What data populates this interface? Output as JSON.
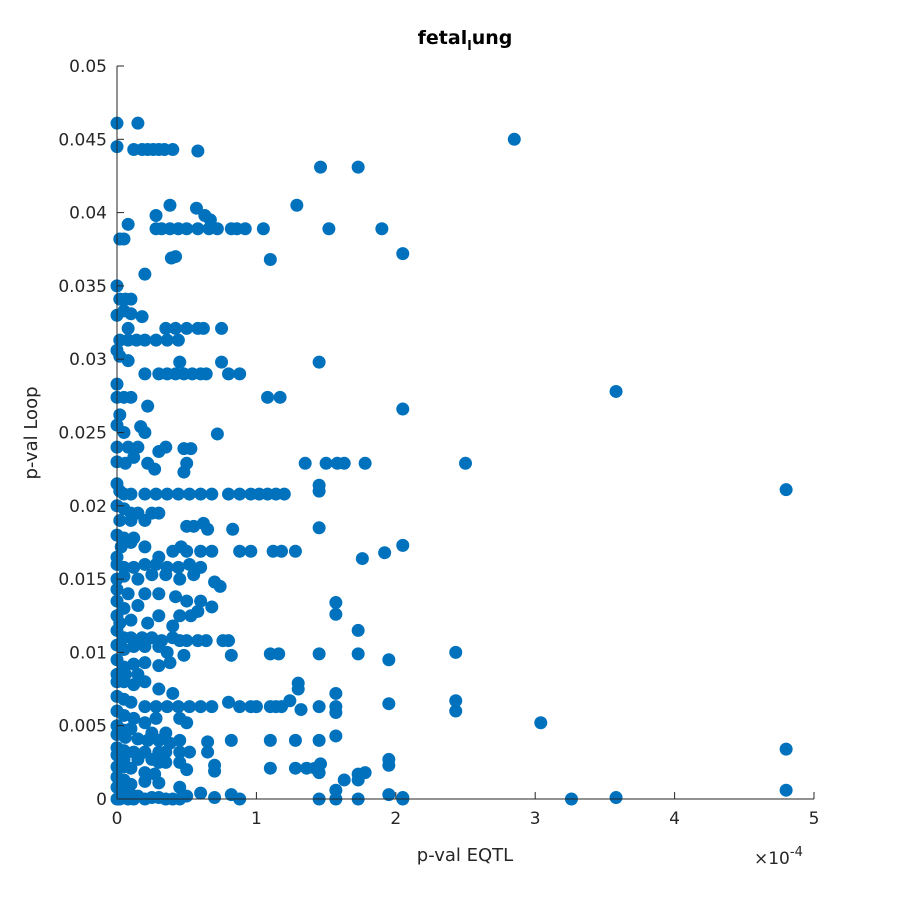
{
  "chart_data": {
    "type": "scatter",
    "title_parts": [
      "fetal",
      "l",
      "ung"
    ],
    "xlabel": "p-val EQTL",
    "ylabel": "p-val Loop",
    "x_multiplier_base": "×10",
    "x_multiplier_exp": "-4",
    "xlim": [
      0,
      5
    ],
    "ylim": [
      0,
      0.05
    ],
    "x_ticks": [
      0,
      1,
      2,
      3,
      4,
      5
    ],
    "x_tick_labels": [
      "0",
      "1",
      "2",
      "3",
      "4",
      "5"
    ],
    "y_ticks": [
      0,
      0.005,
      0.01,
      0.015,
      0.02,
      0.025,
      0.03,
      0.035,
      0.04,
      0.045,
      0.05
    ],
    "y_tick_labels": [
      "0",
      "0.005",
      "0.01",
      "0.015",
      "0.02",
      "0.025",
      "0.03",
      "0.035",
      "0.04",
      "0.045",
      "0.05"
    ],
    "grid": false,
    "marker_color": "#0072BD",
    "x_units_note": "x values in units of 1e-4",
    "points": [
      [
        0.0,
        0.0461
      ],
      [
        0.15,
        0.0461
      ],
      [
        0.0,
        0.0445
      ],
      [
        0.12,
        0.0443
      ],
      [
        0.18,
        0.0443
      ],
      [
        0.22,
        0.0443
      ],
      [
        0.26,
        0.0443
      ],
      [
        0.3,
        0.0443
      ],
      [
        0.34,
        0.0443
      ],
      [
        0.4,
        0.0443
      ],
      [
        0.58,
        0.0442
      ],
      [
        2.85,
        0.045
      ],
      [
        1.46,
        0.0431
      ],
      [
        1.73,
        0.0431
      ],
      [
        1.29,
        0.0405
      ],
      [
        0.38,
        0.0405
      ],
      [
        0.57,
        0.0403
      ],
      [
        0.28,
        0.0398
      ],
      [
        0.63,
        0.0398
      ],
      [
        0.67,
        0.0395
      ],
      [
        0.08,
        0.0392
      ],
      [
        0.28,
        0.0389
      ],
      [
        0.32,
        0.0389
      ],
      [
        0.38,
        0.0389
      ],
      [
        0.44,
        0.0389
      ],
      [
        0.5,
        0.0389
      ],
      [
        0.58,
        0.0389
      ],
      [
        0.66,
        0.0389
      ],
      [
        0.72,
        0.0389
      ],
      [
        0.82,
        0.0389
      ],
      [
        0.86,
        0.0389
      ],
      [
        0.92,
        0.0389
      ],
      [
        1.05,
        0.0389
      ],
      [
        1.52,
        0.0389
      ],
      [
        1.9,
        0.0389
      ],
      [
        0.02,
        0.0382
      ],
      [
        0.05,
        0.0382
      ],
      [
        2.05,
        0.0372
      ],
      [
        0.39,
        0.0369
      ],
      [
        0.42,
        0.037
      ],
      [
        1.1,
        0.0368
      ],
      [
        0.2,
        0.0358
      ],
      [
        0.0,
        0.035
      ],
      [
        0.02,
        0.0341
      ],
      [
        0.06,
        0.0341
      ],
      [
        0.1,
        0.0341
      ],
      [
        0.0,
        0.033
      ],
      [
        0.05,
        0.0333
      ],
      [
        0.1,
        0.0331
      ],
      [
        0.18,
        0.0329
      ],
      [
        0.08,
        0.0321
      ],
      [
        0.35,
        0.0321
      ],
      [
        0.42,
        0.0321
      ],
      [
        0.5,
        0.0321
      ],
      [
        0.58,
        0.0321
      ],
      [
        0.62,
        0.0321
      ],
      [
        0.75,
        0.0321
      ],
      [
        0.02,
        0.0313
      ],
      [
        0.08,
        0.0313
      ],
      [
        0.14,
        0.0313
      ],
      [
        0.2,
        0.0313
      ],
      [
        0.28,
        0.0313
      ],
      [
        0.36,
        0.0313
      ],
      [
        0.44,
        0.0313
      ],
      [
        0.0,
        0.0306
      ],
      [
        0.02,
        0.0302
      ],
      [
        0.08,
        0.0299
      ],
      [
        0.45,
        0.0298
      ],
      [
        0.75,
        0.0298
      ],
      [
        1.45,
        0.0298
      ],
      [
        0.2,
        0.029
      ],
      [
        0.3,
        0.029
      ],
      [
        0.36,
        0.029
      ],
      [
        0.42,
        0.029
      ],
      [
        0.48,
        0.029
      ],
      [
        0.54,
        0.029
      ],
      [
        0.6,
        0.029
      ],
      [
        0.64,
        0.029
      ],
      [
        0.8,
        0.029
      ],
      [
        0.88,
        0.029
      ],
      [
        0.0,
        0.0283
      ],
      [
        3.58,
        0.0278
      ],
      [
        1.08,
        0.0274
      ],
      [
        1.17,
        0.0274
      ],
      [
        0.0,
        0.0274
      ],
      [
        0.05,
        0.0274
      ],
      [
        0.1,
        0.0274
      ],
      [
        0.22,
        0.0268
      ],
      [
        2.05,
        0.0266
      ],
      [
        0.02,
        0.0262
      ],
      [
        0.0,
        0.0255
      ],
      [
        0.05,
        0.025
      ],
      [
        0.17,
        0.0254
      ],
      [
        0.2,
        0.025
      ],
      [
        0.72,
        0.0249
      ],
      [
        0.0,
        0.024
      ],
      [
        0.08,
        0.024
      ],
      [
        0.15,
        0.024
      ],
      [
        0.3,
        0.0237
      ],
      [
        0.35,
        0.024
      ],
      [
        0.48,
        0.0239
      ],
      [
        0.53,
        0.0239
      ],
      [
        0.0,
        0.023
      ],
      [
        0.06,
        0.0229
      ],
      [
        0.12,
        0.0233
      ],
      [
        0.22,
        0.0229
      ],
      [
        0.27,
        0.0225
      ],
      [
        0.5,
        0.0229
      ],
      [
        0.48,
        0.0223
      ],
      [
        1.35,
        0.0229
      ],
      [
        1.5,
        0.0229
      ],
      [
        1.58,
        0.0229
      ],
      [
        1.63,
        0.0229
      ],
      [
        1.78,
        0.0229
      ],
      [
        2.5,
        0.0229
      ],
      [
        0.0,
        0.0215
      ],
      [
        0.02,
        0.021
      ],
      [
        0.05,
        0.0208
      ],
      [
        0.1,
        0.0208
      ],
      [
        0.2,
        0.0208
      ],
      [
        0.28,
        0.0208
      ],
      [
        0.36,
        0.0208
      ],
      [
        0.44,
        0.0208
      ],
      [
        0.52,
        0.0208
      ],
      [
        0.6,
        0.0208
      ],
      [
        0.68,
        0.0208
      ],
      [
        0.8,
        0.0208
      ],
      [
        0.88,
        0.0208
      ],
      [
        0.96,
        0.0208
      ],
      [
        1.02,
        0.0208
      ],
      [
        1.08,
        0.0208
      ],
      [
        1.14,
        0.0208
      ],
      [
        1.2,
        0.0208
      ],
      [
        1.45,
        0.0214
      ],
      [
        1.45,
        0.021
      ],
      [
        4.8,
        0.0211
      ],
      [
        0.0,
        0.02
      ],
      [
        0.05,
        0.0198
      ],
      [
        0.1,
        0.0195
      ],
      [
        0.15,
        0.0195
      ],
      [
        0.25,
        0.0195
      ],
      [
        0.3,
        0.0195
      ],
      [
        0.02,
        0.019
      ],
      [
        0.1,
        0.019
      ],
      [
        0.2,
        0.019
      ],
      [
        0.5,
        0.0186
      ],
      [
        0.55,
        0.0186
      ],
      [
        0.62,
        0.0188
      ],
      [
        0.65,
        0.0184
      ],
      [
        0.83,
        0.0184
      ],
      [
        1.45,
        0.0185
      ],
      [
        0.0,
        0.018
      ],
      [
        0.05,
        0.0178
      ],
      [
        0.12,
        0.0178
      ],
      [
        0.03,
        0.0172
      ],
      [
        0.1,
        0.0175
      ],
      [
        0.2,
        0.0172
      ],
      [
        0.3,
        0.0165
      ],
      [
        0.46,
        0.0172
      ],
      [
        0.4,
        0.0169
      ],
      [
        0.5,
        0.0169
      ],
      [
        0.6,
        0.0169
      ],
      [
        0.68,
        0.0169
      ],
      [
        0.88,
        0.0169
      ],
      [
        0.96,
        0.0169
      ],
      [
        1.12,
        0.0169
      ],
      [
        1.18,
        0.0169
      ],
      [
        1.28,
        0.0169
      ],
      [
        2.05,
        0.0173
      ],
      [
        1.92,
        0.0168
      ],
      [
        1.76,
        0.0164
      ],
      [
        0.0,
        0.0165
      ],
      [
        0.0,
        0.016
      ],
      [
        0.05,
        0.0158
      ],
      [
        0.12,
        0.0158
      ],
      [
        0.2,
        0.016
      ],
      [
        0.28,
        0.016
      ],
      [
        0.36,
        0.0158
      ],
      [
        0.44,
        0.0158
      ],
      [
        0.52,
        0.016
      ],
      [
        0.6,
        0.0158
      ],
      [
        0.0,
        0.015
      ],
      [
        0.05,
        0.0152
      ],
      [
        0.15,
        0.015
      ],
      [
        0.25,
        0.0153
      ],
      [
        0.35,
        0.0153
      ],
      [
        0.45,
        0.015
      ],
      [
        0.55,
        0.0153
      ],
      [
        0.7,
        0.0148
      ],
      [
        0.74,
        0.0145
      ],
      [
        0.0,
        0.0143
      ],
      [
        0.08,
        0.014
      ],
      [
        0.2,
        0.014
      ],
      [
        0.3,
        0.014
      ],
      [
        0.42,
        0.0138
      ],
      [
        0.5,
        0.0135
      ],
      [
        0.6,
        0.0135
      ],
      [
        0.68,
        0.0131
      ],
      [
        0.0,
        0.0135
      ],
      [
        0.05,
        0.013
      ],
      [
        0.15,
        0.0132
      ],
      [
        0.3,
        0.0125
      ],
      [
        0.45,
        0.0125
      ],
      [
        0.53,
        0.0125
      ],
      [
        0.58,
        0.0128
      ],
      [
        1.57,
        0.0134
      ],
      [
        1.57,
        0.0126
      ],
      [
        1.73,
        0.0115
      ],
      [
        0.0,
        0.0125
      ],
      [
        0.02,
        0.012
      ],
      [
        0.1,
        0.0122
      ],
      [
        0.22,
        0.012
      ],
      [
        0.4,
        0.0118
      ],
      [
        0.0,
        0.0115
      ],
      [
        0.05,
        0.011
      ],
      [
        0.1,
        0.011
      ],
      [
        0.18,
        0.011
      ],
      [
        0.25,
        0.011
      ],
      [
        0.32,
        0.0108
      ],
      [
        0.4,
        0.011
      ],
      [
        0.45,
        0.0108
      ],
      [
        0.5,
        0.0108
      ],
      [
        0.58,
        0.0108
      ],
      [
        0.64,
        0.0108
      ],
      [
        0.76,
        0.0108
      ],
      [
        0.8,
        0.0108
      ],
      [
        0.0,
        0.0105
      ],
      [
        0.05,
        0.0102
      ],
      [
        0.12,
        0.0104
      ],
      [
        0.2,
        0.0104
      ],
      [
        0.3,
        0.0104
      ],
      [
        0.36,
        0.01
      ],
      [
        0.48,
        0.0098
      ],
      [
        0.82,
        0.0098
      ],
      [
        1.1,
        0.0099
      ],
      [
        1.16,
        0.0099
      ],
      [
        1.45,
        0.0099
      ],
      [
        1.73,
        0.0099
      ],
      [
        1.95,
        0.0095
      ],
      [
        2.43,
        0.01
      ],
      [
        0.0,
        0.0095
      ],
      [
        0.05,
        0.009
      ],
      [
        0.12,
        0.0092
      ],
      [
        0.2,
        0.0093
      ],
      [
        0.3,
        0.0091
      ],
      [
        0.38,
        0.0093
      ],
      [
        0.0,
        0.0085
      ],
      [
        0.06,
        0.0085
      ],
      [
        0.15,
        0.0085
      ],
      [
        0.0,
        0.008
      ],
      [
        0.05,
        0.008
      ],
      [
        0.12,
        0.0078
      ],
      [
        0.2,
        0.008
      ],
      [
        0.3,
        0.0075
      ],
      [
        0.4,
        0.0072
      ],
      [
        1.3,
        0.0079
      ],
      [
        1.3,
        0.0075
      ],
      [
        1.57,
        0.0072
      ],
      [
        0.0,
        0.007
      ],
      [
        0.05,
        0.0068
      ],
      [
        0.1,
        0.0066
      ],
      [
        0.2,
        0.0063
      ],
      [
        0.28,
        0.0063
      ],
      [
        0.36,
        0.0063
      ],
      [
        0.44,
        0.0063
      ],
      [
        0.52,
        0.0063
      ],
      [
        0.6,
        0.0063
      ],
      [
        0.68,
        0.0063
      ],
      [
        0.8,
        0.0066
      ],
      [
        0.88,
        0.0063
      ],
      [
        0.96,
        0.0063
      ],
      [
        1.0,
        0.0063
      ],
      [
        1.1,
        0.0063
      ],
      [
        1.18,
        0.0063
      ],
      [
        1.24,
        0.0067
      ],
      [
        1.14,
        0.0063
      ],
      [
        1.32,
        0.0061
      ],
      [
        1.45,
        0.0063
      ],
      [
        1.57,
        0.0063
      ],
      [
        1.57,
        0.0059
      ],
      [
        1.95,
        0.0065
      ],
      [
        2.43,
        0.0067
      ],
      [
        2.43,
        0.006
      ],
      [
        3.04,
        0.0052
      ],
      [
        0.0,
        0.006
      ],
      [
        0.05,
        0.0057
      ],
      [
        0.12,
        0.0055
      ],
      [
        0.2,
        0.0052
      ],
      [
        0.28,
        0.0055
      ],
      [
        0.45,
        0.0055
      ],
      [
        0.5,
        0.0052
      ],
      [
        0.0,
        0.005
      ],
      [
        0.05,
        0.0047
      ],
      [
        0.1,
        0.0048
      ],
      [
        0.25,
        0.0045
      ],
      [
        0.35,
        0.0045
      ],
      [
        0.0,
        0.0044
      ],
      [
        0.06,
        0.0042
      ],
      [
        0.15,
        0.0041
      ],
      [
        0.22,
        0.004
      ],
      [
        0.3,
        0.004
      ],
      [
        0.38,
        0.0038
      ],
      [
        0.45,
        0.004
      ],
      [
        0.65,
        0.0039
      ],
      [
        0.82,
        0.004
      ],
      [
        1.1,
        0.004
      ],
      [
        1.28,
        0.004
      ],
      [
        1.45,
        0.004
      ],
      [
        1.57,
        0.0043
      ],
      [
        0.0,
        0.0035
      ],
      [
        0.05,
        0.0033
      ],
      [
        0.12,
        0.0032
      ],
      [
        0.2,
        0.0032
      ],
      [
        0.3,
        0.0032
      ],
      [
        0.35,
        0.0032
      ],
      [
        0.45,
        0.0032
      ],
      [
        0.52,
        0.0032
      ],
      [
        0.65,
        0.0032
      ],
      [
        4.8,
        0.0034
      ],
      [
        0.0,
        0.003
      ],
      [
        0.05,
        0.0027
      ],
      [
        0.15,
        0.0027
      ],
      [
        0.25,
        0.0027
      ],
      [
        0.3,
        0.0025
      ],
      [
        0.35,
        0.0025
      ],
      [
        0.45,
        0.0025
      ],
      [
        0.7,
        0.0023
      ],
      [
        0.7,
        0.0019
      ],
      [
        0.0,
        0.0022
      ],
      [
        0.05,
        0.0022
      ],
      [
        0.1,
        0.0021
      ],
      [
        0.2,
        0.0018
      ],
      [
        0.27,
        0.0017
      ],
      [
        0.5,
        0.002
      ],
      [
        1.1,
        0.0021
      ],
      [
        1.28,
        0.0021
      ],
      [
        1.36,
        0.0021
      ],
      [
        1.42,
        0.0021
      ],
      [
        1.46,
        0.0024
      ],
      [
        1.45,
        0.0018
      ],
      [
        1.63,
        0.0013
      ],
      [
        1.73,
        0.0017
      ],
      [
        1.73,
        0.0013
      ],
      [
        1.78,
        0.0018
      ],
      [
        1.95,
        0.0027
      ],
      [
        1.95,
        0.0023
      ],
      [
        0.0,
        0.0015
      ],
      [
        0.05,
        0.0013
      ],
      [
        0.1,
        0.001
      ],
      [
        0.2,
        0.0012
      ],
      [
        0.3,
        0.0011
      ],
      [
        0.45,
        0.0008
      ],
      [
        0.0,
        0.0008
      ],
      [
        0.05,
        0.0005
      ],
      [
        0.1,
        0.0003
      ],
      [
        0.15,
        0.0002
      ],
      [
        0.25,
        0.0001
      ],
      [
        0.3,
        0.0001
      ],
      [
        0.35,
        0.0
      ],
      [
        0.45,
        0.0
      ],
      [
        0.5,
        0.0002
      ],
      [
        0.6,
        0.0004
      ],
      [
        0.7,
        0.0001
      ],
      [
        0.82,
        0.0003
      ],
      [
        0.88,
        0.0
      ],
      [
        0.0,
        0.0
      ],
      [
        0.02,
        0.0
      ],
      [
        0.08,
        0.0
      ],
      [
        0.12,
        0.0
      ],
      [
        0.2,
        0.0
      ],
      [
        0.4,
        0.0
      ],
      [
        1.45,
        0.0
      ],
      [
        1.57,
        0.0
      ],
      [
        1.57,
        0.0006
      ],
      [
        1.73,
        0.0
      ],
      [
        1.95,
        0.0003
      ],
      [
        2.05,
        0.0001
      ],
      [
        2.05,
        0.0
      ],
      [
        3.26,
        0.0
      ],
      [
        3.58,
        0.0001
      ],
      [
        4.8,
        0.0006
      ]
    ]
  }
}
